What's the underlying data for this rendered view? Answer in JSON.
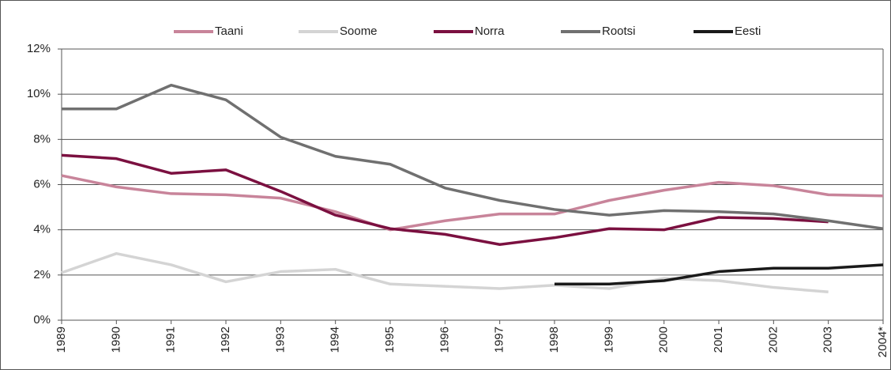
{
  "chart_data": {
    "type": "line",
    "categories": [
      "1989",
      "1990",
      "1991",
      "1992",
      "1993",
      "1994",
      "1995",
      "1996",
      "1997",
      "1998",
      "1999",
      "2000",
      "2001",
      "2002",
      "2003",
      "2004*"
    ],
    "series": [
      {
        "name": "Taani",
        "color": "#c8849a",
        "values": [
          6.4,
          5.9,
          5.6,
          5.55,
          5.4,
          4.8,
          4.0,
          4.4,
          4.7,
          4.7,
          5.3,
          5.75,
          6.1,
          5.95,
          5.55,
          5.5
        ]
      },
      {
        "name": "Soome",
        "color": "#d4d4d4",
        "values": [
          2.1,
          2.95,
          2.45,
          1.7,
          2.15,
          2.25,
          1.6,
          1.5,
          1.4,
          1.55,
          1.4,
          1.85,
          1.75,
          1.45,
          1.25,
          null
        ]
      },
      {
        "name": "Norra",
        "color": "#7b1040",
        "values": [
          7.3,
          7.15,
          6.5,
          6.65,
          5.7,
          4.65,
          4.05,
          3.8,
          3.35,
          3.65,
          4.05,
          4.0,
          4.55,
          4.5,
          4.35,
          null
        ]
      },
      {
        "name": "Rootsi",
        "color": "#707070",
        "values": [
          9.35,
          9.35,
          10.4,
          9.75,
          8.1,
          7.25,
          6.9,
          5.85,
          5.3,
          4.9,
          4.65,
          4.85,
          4.8,
          4.7,
          4.4,
          4.05
        ]
      },
      {
        "name": "Eesti",
        "color": "#1a1a1a",
        "values": [
          null,
          null,
          null,
          null,
          null,
          null,
          null,
          null,
          null,
          1.6,
          1.6,
          1.75,
          2.15,
          2.3,
          2.3,
          2.45
        ]
      }
    ],
    "ylim": [
      0,
      12
    ],
    "yticks": [
      {
        "value": 0,
        "label": "0%"
      },
      {
        "value": 2,
        "label": "2%"
      },
      {
        "value": 4,
        "label": "4%"
      },
      {
        "value": 6,
        "label": "6%"
      },
      {
        "value": 8,
        "label": "8%"
      },
      {
        "value": 10,
        "label": "10%"
      },
      {
        "value": 12,
        "label": "12%"
      }
    ],
    "grid": true,
    "legend": "top"
  }
}
